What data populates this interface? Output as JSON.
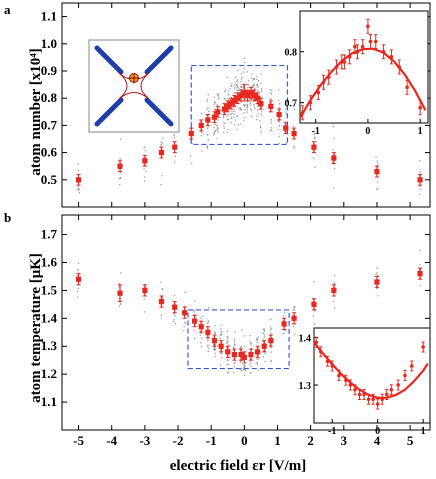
{
  "figure": {
    "xlabel": "electric field εr [V/m]",
    "x_ticks": [
      "-5",
      "-4",
      "-3",
      "-2",
      "-1",
      "0",
      "1",
      "2",
      "3",
      "4",
      "5"
    ]
  },
  "chart_data": [
    {
      "type": "scatter",
      "panel_label": "a",
      "ylabel": "atom number [x10⁴]",
      "xlim": [
        -5.5,
        5.6
      ],
      "ylim": [
        0.4,
        1.15
      ],
      "y_ticks": [
        "0.5",
        "0.6",
        "0.7",
        "0.8",
        "0.9",
        "1.0",
        "1.1"
      ],
      "marker_color": "#e8281e",
      "scatter_color": "#9a9a9a",
      "highlight_box_color": "#3a5ad8",
      "series": [
        {
          "x": [
            -5,
            -3.75,
            -3,
            -2.5,
            -2.1,
            -1.6,
            -1.3,
            -1.1,
            -0.9,
            -0.8,
            -0.6,
            -0.5,
            -0.4,
            -0.3,
            -0.2,
            -0.1,
            0,
            0.1,
            0.2,
            0.3,
            0.4,
            0.5,
            0.8,
            1.05,
            1.25,
            1.5,
            2.1,
            2.7,
            4,
            5.3
          ],
          "y": [
            0.5,
            0.55,
            0.57,
            0.6,
            0.62,
            0.67,
            0.7,
            0.72,
            0.73,
            0.75,
            0.76,
            0.77,
            0.78,
            0.79,
            0.8,
            0.81,
            0.82,
            0.81,
            0.82,
            0.81,
            0.8,
            0.78,
            0.77,
            0.74,
            0.69,
            0.67,
            0.62,
            0.58,
            0.53,
            0.5
          ],
          "err": [
            0.02,
            0.02,
            0.02,
            0.02,
            0.02,
            0.02,
            0.02,
            0.02,
            0.02,
            0.02,
            0.02,
            0.02,
            0.02,
            0.02,
            0.02,
            0.02,
            0.03,
            0.02,
            0.02,
            0.02,
            0.02,
            0.02,
            0.02,
            0.02,
            0.02,
            0.02,
            0.02,
            0.02,
            0.02,
            0.02
          ]
        }
      ],
      "inset": {
        "xlim": [
          -1.3,
          1.15
        ],
        "ylim": [
          0.66,
          0.88
        ],
        "x_ticks": [
          "-1",
          "0",
          "1"
        ],
        "y_ticks": [
          "0.7",
          "0.8"
        ],
        "x": [
          -1.25,
          -1.1,
          -0.95,
          -0.85,
          -0.75,
          -0.6,
          -0.5,
          -0.45,
          -0.35,
          -0.25,
          -0.2,
          -0.1,
          0,
          0.05,
          0.15,
          0.3,
          0.45,
          0.6,
          0.75,
          1.0
        ],
        "y": [
          0.68,
          0.7,
          0.72,
          0.74,
          0.75,
          0.77,
          0.78,
          0.78,
          0.79,
          0.81,
          0.8,
          0.81,
          0.85,
          0.82,
          0.82,
          0.8,
          0.79,
          0.77,
          0.73,
          0.69
        ],
        "fit_x": [
          -1.3,
          -1.1,
          -0.9,
          -0.7,
          -0.5,
          -0.3,
          -0.1,
          0.1,
          0.3,
          0.5,
          0.7,
          0.9,
          1.1
        ],
        "fit_y": [
          0.67,
          0.705,
          0.735,
          0.76,
          0.782,
          0.797,
          0.805,
          0.806,
          0.798,
          0.781,
          0.756,
          0.724,
          0.685
        ]
      }
    },
    {
      "type": "scatter",
      "panel_label": "b",
      "ylabel": "atom temperature [μK]",
      "xlim": [
        -5.5,
        5.6
      ],
      "ylim": [
        1.0,
        1.77
      ],
      "y_ticks": [
        "1.1",
        "1.2",
        "1.3",
        "1.4",
        "1.5",
        "1.6",
        "1.7"
      ],
      "marker_color": "#e8281e",
      "scatter_color": "#9a9a9a",
      "highlight_box_color": "#3a5ad8",
      "series": [
        {
          "x": [
            -5,
            -3.75,
            -3,
            -2.5,
            -2.1,
            -1.8,
            -1.5,
            -1.3,
            -1.1,
            -0.9,
            -0.7,
            -0.5,
            -0.3,
            -0.1,
            0,
            0.2,
            0.4,
            0.6,
            0.8,
            1.2,
            1.5,
            2.1,
            2.7,
            4,
            5.3
          ],
          "y": [
            1.54,
            1.49,
            1.5,
            1.46,
            1.44,
            1.42,
            1.39,
            1.37,
            1.35,
            1.32,
            1.3,
            1.28,
            1.27,
            1.27,
            1.26,
            1.27,
            1.28,
            1.3,
            1.32,
            1.38,
            1.4,
            1.45,
            1.5,
            1.53,
            1.56
          ],
          "err": [
            0.02,
            0.03,
            0.02,
            0.02,
            0.02,
            0.02,
            0.02,
            0.02,
            0.02,
            0.02,
            0.02,
            0.02,
            0.02,
            0.02,
            0.02,
            0.02,
            0.02,
            0.02,
            0.02,
            0.02,
            0.02,
            0.02,
            0.02,
            0.02,
            0.02
          ]
        }
      ],
      "inset": {
        "xlim": [
          -1.4,
          1.15
        ],
        "ylim": [
          1.22,
          1.42
        ],
        "x_ticks": [
          "-1",
          "0",
          "1"
        ],
        "y_ticks": [
          "1.3",
          "1.4"
        ],
        "x": [
          -1.35,
          -1.25,
          -1.1,
          -1,
          -0.85,
          -0.7,
          -0.6,
          -0.5,
          -0.4,
          -0.3,
          -0.2,
          -0.1,
          0,
          0.1,
          0.2,
          0.3,
          0.45,
          0.6,
          0.75,
          1.0
        ],
        "y": [
          1.39,
          1.37,
          1.35,
          1.34,
          1.32,
          1.31,
          1.3,
          1.29,
          1.28,
          1.28,
          1.27,
          1.27,
          1.26,
          1.27,
          1.28,
          1.29,
          1.3,
          1.32,
          1.34,
          1.38
        ],
        "fit_x": [
          -1.4,
          -1.2,
          -1,
          -0.8,
          -0.6,
          -0.4,
          -0.2,
          0,
          0.2,
          0.4,
          0.6,
          0.8,
          1,
          1.1
        ],
        "fit_y": [
          1.39,
          1.366,
          1.344,
          1.323,
          1.305,
          1.29,
          1.279,
          1.273,
          1.273,
          1.279,
          1.29,
          1.308,
          1.33,
          1.345
        ]
      }
    }
  ]
}
